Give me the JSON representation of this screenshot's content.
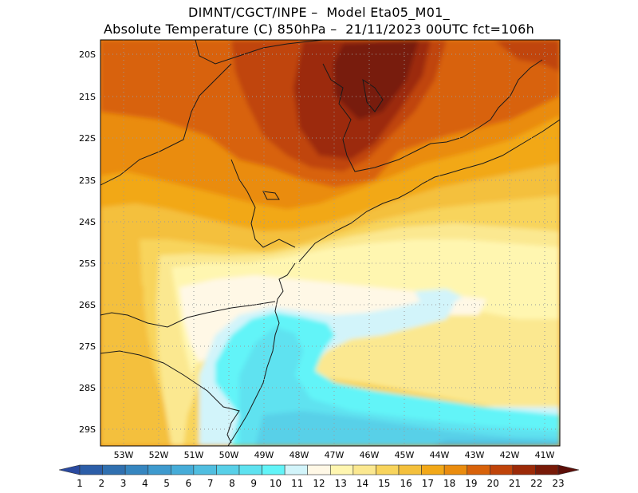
{
  "title": {
    "line1": "DIMNT/CGCT/INPE –  Model Eta05_M01_",
    "line2": "Absolute Temperature (C) 850hPa –  21/11/2023 00UTC fct=106h"
  },
  "axes": {
    "lat_labels": [
      "20S",
      "21S",
      "22S",
      "23S",
      "24S",
      "25S",
      "26S",
      "27S",
      "28S",
      "29S"
    ],
    "lon_labels": [
      "53W",
      "52W",
      "51W",
      "50W",
      "49W",
      "48W",
      "47W",
      "46W",
      "45W",
      "44W",
      "43W",
      "42W",
      "41W"
    ]
  },
  "colorbar": {
    "labels": [
      "1",
      "2",
      "3",
      "4",
      "5",
      "6",
      "7",
      "8",
      "9",
      "10",
      "11",
      "12",
      "13",
      "14",
      "15",
      "16",
      "17",
      "18",
      "19",
      "20",
      "21",
      "22",
      "23"
    ],
    "colors": [
      "#2a4aa0",
      "#2c5ea8",
      "#3070b0",
      "#3686c0",
      "#3e9ace",
      "#46acd8",
      "#50bee0",
      "#58d0e8",
      "#5ee2f0",
      "#62f4f8",
      "#d2f4fa",
      "#fff8e6",
      "#fff6b0",
      "#fbe890",
      "#f8d45c",
      "#f4c03c",
      "#f2a818",
      "#ea8c0e",
      "#d8620a",
      "#c0440a",
      "#9c2a08",
      "#781a08",
      "#5c0e08"
    ]
  }
}
